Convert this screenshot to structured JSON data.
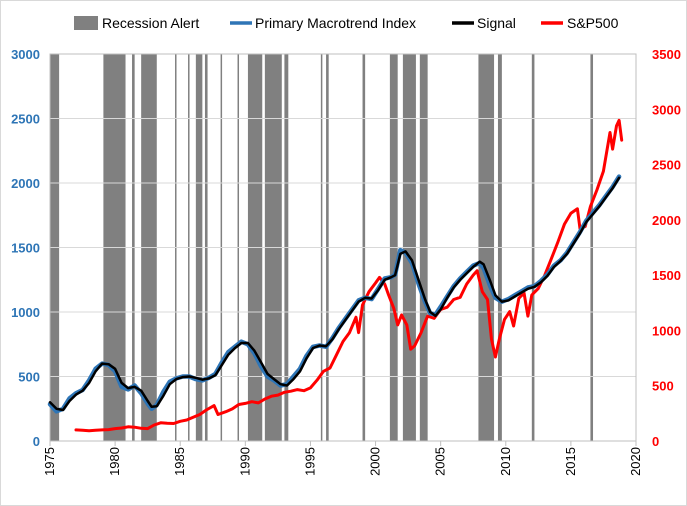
{
  "chart_data": {
    "type": "line",
    "title": "",
    "xlabel": "",
    "ylabel_left": "",
    "ylabel_right": "",
    "xlim": [
      1975,
      2020
    ],
    "ylim_left": [
      0,
      3000
    ],
    "ylim_right": [
      0,
      3500
    ],
    "x_ticks": [
      "1975",
      "1980",
      "1985",
      "1990",
      "1995",
      "2000",
      "2005",
      "2010",
      "2015",
      "2020"
    ],
    "y_ticks_left": [
      "0",
      "500",
      "1000",
      "1500",
      "2000",
      "2500",
      "3000"
    ],
    "y_ticks_right": [
      "0",
      "500",
      "1000",
      "1500",
      "2000",
      "2500",
      "3000",
      "3500"
    ],
    "grid": "horizontal",
    "legend_position": "top",
    "legend": [
      {
        "label": "Recession Alert",
        "symbol": "bar"
      },
      {
        "label": "Primary Macrotrend Index",
        "symbol": "line"
      },
      {
        "label": "Signal",
        "symbol": "line"
      },
      {
        "label": "S&P500",
        "symbol": "line"
      }
    ],
    "colors": {
      "recession": "#808080",
      "primary": "#2e75b6",
      "signal": "#000000",
      "sp500": "#ff0000",
      "grid": "#d9d9d9"
    },
    "recession_alerts": [
      [
        1975.0,
        1975.7
      ],
      [
        1979.1,
        1980.8
      ],
      [
        1981.3,
        1981.5
      ],
      [
        1982.0,
        1983.2
      ],
      [
        1984.6,
        1984.7
      ],
      [
        1985.6,
        1985.7
      ],
      [
        1986.2,
        1986.7
      ],
      [
        1986.9,
        1987.1
      ],
      [
        1988.1,
        1988.2
      ],
      [
        1989.4,
        1989.5
      ],
      [
        1990.2,
        1991.3
      ],
      [
        1991.5,
        1992.8
      ],
      [
        1993.0,
        1993.3
      ],
      [
        1995.8,
        1995.9
      ],
      [
        1996.2,
        1996.4
      ],
      [
        1999.0,
        1999.2
      ],
      [
        2001.1,
        2001.7
      ],
      [
        2002.1,
        2003.1
      ],
      [
        2003.4,
        2004.0
      ],
      [
        2007.9,
        2009.1
      ],
      [
        2009.4,
        2009.7
      ],
      [
        2012.0,
        2012.2
      ],
      [
        2016.5,
        2016.7
      ]
    ],
    "series": [
      {
        "name": "Primary Macrotrend Index",
        "axis": "left",
        "points": [
          [
            1975.0,
            285
          ],
          [
            1975.5,
            230
          ],
          [
            1976.0,
            250
          ],
          [
            1976.5,
            330
          ],
          [
            1977.0,
            370
          ],
          [
            1977.5,
            395
          ],
          [
            1978.0,
            470
          ],
          [
            1978.5,
            560
          ],
          [
            1979.0,
            600
          ],
          [
            1979.5,
            590
          ],
          [
            1980.0,
            540
          ],
          [
            1980.5,
            420
          ],
          [
            1981.0,
            400
          ],
          [
            1981.5,
            430
          ],
          [
            1982.0,
            370
          ],
          [
            1982.5,
            290
          ],
          [
            1982.8,
            250
          ],
          [
            1983.2,
            280
          ],
          [
            1983.7,
            380
          ],
          [
            1984.2,
            460
          ],
          [
            1984.7,
            485
          ],
          [
            1985.2,
            500
          ],
          [
            1985.7,
            500
          ],
          [
            1986.2,
            480
          ],
          [
            1986.7,
            470
          ],
          [
            1987.2,
            490
          ],
          [
            1987.7,
            520
          ],
          [
            1988.2,
            610
          ],
          [
            1988.7,
            690
          ],
          [
            1989.2,
            730
          ],
          [
            1989.7,
            770
          ],
          [
            1990.2,
            750
          ],
          [
            1990.7,
            680
          ],
          [
            1991.2,
            580
          ],
          [
            1991.7,
            500
          ],
          [
            1992.2,
            470
          ],
          [
            1992.7,
            430
          ],
          [
            1993.2,
            440
          ],
          [
            1993.7,
            500
          ],
          [
            1994.2,
            560
          ],
          [
            1994.7,
            660
          ],
          [
            1995.2,
            730
          ],
          [
            1995.7,
            740
          ],
          [
            1996.2,
            730
          ],
          [
            1996.7,
            800
          ],
          [
            1997.2,
            880
          ],
          [
            1997.7,
            950
          ],
          [
            1998.2,
            1020
          ],
          [
            1998.7,
            1090
          ],
          [
            1999.2,
            1110
          ],
          [
            1999.7,
            1100
          ],
          [
            2000.2,
            1180
          ],
          [
            2000.7,
            1260
          ],
          [
            2001.2,
            1270
          ],
          [
            2001.5,
            1290
          ],
          [
            2001.9,
            1480
          ],
          [
            2002.3,
            1460
          ],
          [
            2002.8,
            1380
          ],
          [
            2003.3,
            1220
          ],
          [
            2003.8,
            1080
          ],
          [
            2004.2,
            990
          ],
          [
            2004.6,
            980
          ],
          [
            2005.0,
            1040
          ],
          [
            2005.5,
            1120
          ],
          [
            2006.0,
            1200
          ],
          [
            2006.5,
            1260
          ],
          [
            2007.0,
            1310
          ],
          [
            2007.5,
            1360
          ],
          [
            2008.0,
            1380
          ],
          [
            2008.3,
            1340
          ],
          [
            2008.8,
            1200
          ],
          [
            2009.2,
            1110
          ],
          [
            2009.7,
            1080
          ],
          [
            2010.2,
            1100
          ],
          [
            2010.7,
            1130
          ],
          [
            2011.2,
            1160
          ],
          [
            2011.7,
            1190
          ],
          [
            2012.2,
            1200
          ],
          [
            2012.7,
            1240
          ],
          [
            2013.2,
            1290
          ],
          [
            2013.7,
            1360
          ],
          [
            2014.2,
            1400
          ],
          [
            2014.7,
            1460
          ],
          [
            2015.2,
            1540
          ],
          [
            2015.7,
            1620
          ],
          [
            2016.2,
            1710
          ],
          [
            2016.7,
            1770
          ],
          [
            2017.2,
            1830
          ],
          [
            2017.7,
            1900
          ],
          [
            2018.2,
            1970
          ],
          [
            2018.7,
            2050
          ]
        ]
      },
      {
        "name": "Signal",
        "axis": "left",
        "points": [
          [
            1975.0,
            300
          ],
          [
            1975.5,
            250
          ],
          [
            1976.0,
            240
          ],
          [
            1976.5,
            310
          ],
          [
            1977.0,
            360
          ],
          [
            1977.5,
            390
          ],
          [
            1978.0,
            450
          ],
          [
            1978.5,
            540
          ],
          [
            1979.0,
            600
          ],
          [
            1979.5,
            595
          ],
          [
            1980.0,
            560
          ],
          [
            1980.5,
            450
          ],
          [
            1981.0,
            410
          ],
          [
            1981.5,
            420
          ],
          [
            1982.0,
            390
          ],
          [
            1982.5,
            310
          ],
          [
            1982.8,
            265
          ],
          [
            1983.2,
            270
          ],
          [
            1983.7,
            350
          ],
          [
            1984.2,
            440
          ],
          [
            1984.7,
            480
          ],
          [
            1985.2,
            495
          ],
          [
            1985.7,
            500
          ],
          [
            1986.2,
            490
          ],
          [
            1986.7,
            475
          ],
          [
            1987.2,
            485
          ],
          [
            1987.7,
            510
          ],
          [
            1988.2,
            590
          ],
          [
            1988.7,
            670
          ],
          [
            1989.2,
            720
          ],
          [
            1989.7,
            760
          ],
          [
            1990.2,
            760
          ],
          [
            1990.7,
            700
          ],
          [
            1991.2,
            610
          ],
          [
            1991.7,
            520
          ],
          [
            1992.2,
            480
          ],
          [
            1992.7,
            440
          ],
          [
            1993.2,
            430
          ],
          [
            1993.7,
            480
          ],
          [
            1994.2,
            540
          ],
          [
            1994.7,
            640
          ],
          [
            1995.2,
            720
          ],
          [
            1995.7,
            740
          ],
          [
            1996.2,
            735
          ],
          [
            1996.7,
            790
          ],
          [
            1997.2,
            870
          ],
          [
            1997.7,
            940
          ],
          [
            1998.2,
            1010
          ],
          [
            1998.7,
            1080
          ],
          [
            1999.2,
            1110
          ],
          [
            1999.7,
            1105
          ],
          [
            2000.2,
            1170
          ],
          [
            2000.7,
            1250
          ],
          [
            2001.2,
            1270
          ],
          [
            2001.5,
            1285
          ],
          [
            2001.9,
            1450
          ],
          [
            2002.3,
            1470
          ],
          [
            2002.8,
            1400
          ],
          [
            2003.3,
            1250
          ],
          [
            2003.8,
            1100
          ],
          [
            2004.2,
            1000
          ],
          [
            2004.6,
            970
          ],
          [
            2005.0,
            1020
          ],
          [
            2005.5,
            1110
          ],
          [
            2006.0,
            1190
          ],
          [
            2006.5,
            1250
          ],
          [
            2007.0,
            1300
          ],
          [
            2007.5,
            1350
          ],
          [
            2008.0,
            1390
          ],
          [
            2008.3,
            1370
          ],
          [
            2008.8,
            1240
          ],
          [
            2009.2,
            1130
          ],
          [
            2009.7,
            1080
          ],
          [
            2010.2,
            1090
          ],
          [
            2010.7,
            1120
          ],
          [
            2011.2,
            1150
          ],
          [
            2011.7,
            1180
          ],
          [
            2012.2,
            1195
          ],
          [
            2012.7,
            1230
          ],
          [
            2013.2,
            1280
          ],
          [
            2013.7,
            1350
          ],
          [
            2014.2,
            1395
          ],
          [
            2014.7,
            1450
          ],
          [
            2015.2,
            1530
          ],
          [
            2015.7,
            1610
          ],
          [
            2016.2,
            1700
          ],
          [
            2016.7,
            1760
          ],
          [
            2017.2,
            1820
          ],
          [
            2017.7,
            1890
          ],
          [
            2018.2,
            1960
          ],
          [
            2018.7,
            2040
          ]
        ]
      },
      {
        "name": "S&P500",
        "axis": "right",
        "points": [
          [
            1977.0,
            100
          ],
          [
            1977.5,
            98
          ],
          [
            1978.0,
            92
          ],
          [
            1978.5,
            97
          ],
          [
            1979.0,
            100
          ],
          [
            1979.5,
            103
          ],
          [
            1980.0,
            112
          ],
          [
            1980.5,
            118
          ],
          [
            1981.0,
            128
          ],
          [
            1981.5,
            125
          ],
          [
            1982.0,
            115
          ],
          [
            1982.5,
            112
          ],
          [
            1983.0,
            145
          ],
          [
            1983.5,
            165
          ],
          [
            1984.0,
            160
          ],
          [
            1984.5,
            158
          ],
          [
            1985.0,
            178
          ],
          [
            1985.5,
            190
          ],
          [
            1986.0,
            215
          ],
          [
            1986.5,
            240
          ],
          [
            1987.0,
            280
          ],
          [
            1987.6,
            320
          ],
          [
            1987.9,
            240
          ],
          [
            1988.5,
            265
          ],
          [
            1989.0,
            290
          ],
          [
            1989.5,
            330
          ],
          [
            1990.0,
            340
          ],
          [
            1990.5,
            355
          ],
          [
            1991.0,
            345
          ],
          [
            1991.5,
            380
          ],
          [
            1992.0,
            405
          ],
          [
            1992.5,
            415
          ],
          [
            1993.0,
            440
          ],
          [
            1993.5,
            450
          ],
          [
            1994.0,
            465
          ],
          [
            1994.5,
            455
          ],
          [
            1995.0,
            480
          ],
          [
            1995.5,
            550
          ],
          [
            1996.0,
            630
          ],
          [
            1996.5,
            660
          ],
          [
            1997.0,
            780
          ],
          [
            1997.5,
            900
          ],
          [
            1998.0,
            980
          ],
          [
            1998.5,
            1120
          ],
          [
            1998.7,
            980
          ],
          [
            1999.0,
            1230
          ],
          [
            1999.5,
            1350
          ],
          [
            2000.0,
            1430
          ],
          [
            2000.3,
            1480
          ],
          [
            2000.7,
            1420
          ],
          [
            2001.0,
            1320
          ],
          [
            2001.4,
            1200
          ],
          [
            2001.7,
            1050
          ],
          [
            2002.0,
            1140
          ],
          [
            2002.4,
            1050
          ],
          [
            2002.7,
            830
          ],
          [
            2003.0,
            860
          ],
          [
            2003.5,
            980
          ],
          [
            2004.0,
            1130
          ],
          [
            2004.5,
            1110
          ],
          [
            2005.0,
            1190
          ],
          [
            2005.5,
            1210
          ],
          [
            2006.0,
            1280
          ],
          [
            2006.5,
            1300
          ],
          [
            2007.0,
            1420
          ],
          [
            2007.5,
            1500
          ],
          [
            2007.8,
            1540
          ],
          [
            2008.2,
            1350
          ],
          [
            2008.6,
            1280
          ],
          [
            2008.9,
            920
          ],
          [
            2009.2,
            760
          ],
          [
            2009.5,
            920
          ],
          [
            2009.9,
            1100
          ],
          [
            2010.3,
            1170
          ],
          [
            2010.6,
            1040
          ],
          [
            2011.0,
            1290
          ],
          [
            2011.4,
            1340
          ],
          [
            2011.7,
            1130
          ],
          [
            2012.0,
            1320
          ],
          [
            2012.5,
            1380
          ],
          [
            2013.0,
            1500
          ],
          [
            2013.5,
            1650
          ],
          [
            2014.0,
            1800
          ],
          [
            2014.5,
            1960
          ],
          [
            2015.0,
            2060
          ],
          [
            2015.5,
            2100
          ],
          [
            2015.7,
            1920
          ],
          [
            2016.1,
            1940
          ],
          [
            2016.5,
            2120
          ],
          [
            2017.0,
            2270
          ],
          [
            2017.5,
            2440
          ],
          [
            2018.0,
            2790
          ],
          [
            2018.2,
            2640
          ],
          [
            2018.5,
            2850
          ],
          [
            2018.7,
            2900
          ],
          [
            2018.9,
            2720
          ]
        ]
      }
    ]
  }
}
